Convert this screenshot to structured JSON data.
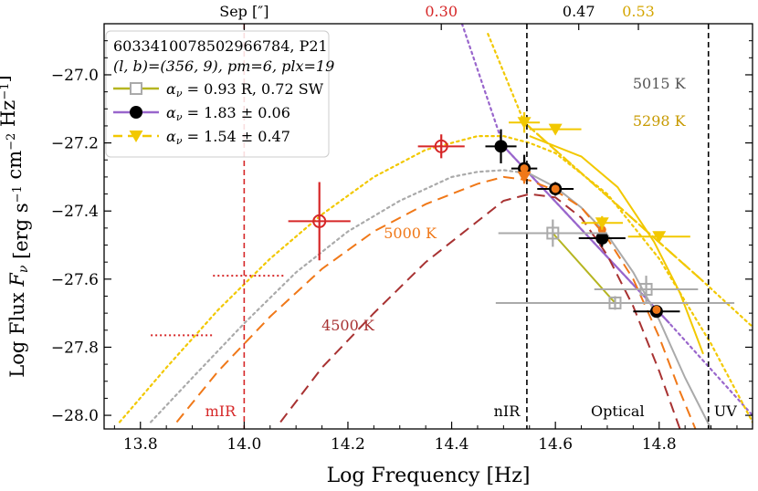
{
  "chart_data": {
    "type": "scatter",
    "title": "",
    "xlabel": "Log Frequency [Hz]",
    "ylabel": "Log Flux F_ν [erg s⁻¹ cm⁻² Hz⁻¹]",
    "ylabel_parts": {
      "pre": "Log Flux ",
      "F": "F",
      "nu": "ν",
      "post": " [erg s",
      "sup1": "−1",
      "mid": " cm",
      "sup2": "−2",
      "end": " Hz",
      "sup3": "−1",
      "close": "]"
    },
    "xlim": [
      13.73,
      14.98
    ],
    "ylim": [
      -28.04,
      -26.85
    ],
    "xticks": [
      13.8,
      14.0,
      14.2,
      14.4,
      14.6,
      14.8
    ],
    "xtick_labels": [
      "13.8",
      "14.0",
      "14.2",
      "14.4",
      "14.6",
      "14.8"
    ],
    "yticks": [
      -28.0,
      -27.8,
      -27.6,
      -27.4,
      -27.2,
      -27.0
    ],
    "ytick_labels": [
      "−28.0",
      "−27.8",
      "−27.6",
      "−27.4",
      "−27.2",
      "−27.0"
    ],
    "top_axis": {
      "label": "Sep [″]",
      "ticks": [
        {
          "x": 14.38,
          "label": "0.30",
          "color": "#d62728"
        },
        {
          "x": 14.645,
          "label": "0.47",
          "color": "#000000"
        },
        {
          "x": 14.76,
          "label": "0.53",
          "color": "#d4a500"
        }
      ]
    },
    "vlines": [
      {
        "x": 14.0,
        "label": "mIR",
        "color": "#d62728",
        "style": "dashed"
      },
      {
        "x": 14.545,
        "label": "nIR",
        "color": "#000000",
        "style": "dashed"
      },
      {
        "x": 14.895,
        "label": "UV",
        "color": "#000000",
        "style": "dashed"
      }
    ],
    "band_labels": [
      {
        "x": 14.545,
        "label": "nIR"
      },
      {
        "x": 14.72,
        "label": "Optical"
      },
      {
        "x": 14.895,
        "label": "UV"
      }
    ],
    "legend": {
      "position": "top-left",
      "header1": "6033410078502966784, P21",
      "header2": "(l, b)=(356, 9), pm=6, plx=19",
      "entries": [
        {
          "alpha": "0.93",
          "extra": "R, 0.72 SW",
          "color": "#b5b520",
          "marker": "square-open",
          "markerColor": "#aaaaaa",
          "dash": "solid"
        },
        {
          "alpha": "1.83 ± 0.06",
          "extra": "",
          "color": "#9966cc",
          "marker": "circle",
          "markerColor": "#000000",
          "dash": "solid"
        },
        {
          "alpha": "1.54 ± 0.47",
          "extra": "",
          "color": "#f2c800",
          "marker": "triangle-down",
          "markerColor": "#f2c800",
          "dash": "dashed"
        }
      ]
    },
    "curve_labels": [
      {
        "text": "5015 K",
        "x": 14.8,
        "y": -27.04,
        "color": "#555555"
      },
      {
        "text": "5298 K",
        "x": 14.8,
        "y": -27.15,
        "color": "#c79a00"
      },
      {
        "text": "5000 K",
        "x": 14.32,
        "y": -27.48,
        "color": "#f07818"
      },
      {
        "text": "4500 K",
        "x": 14.2,
        "y": -27.75,
        "color": "#a83232"
      }
    ],
    "series": [
      {
        "name": "mIR (red open circles)",
        "color": "#d62728",
        "marker": "circle-open",
        "points": [
          {
            "x": 14.145,
            "y": -27.43,
            "xerr": 0.06,
            "yerr": 0.115
          },
          {
            "x": 14.38,
            "y": -27.21,
            "xerr": 0.045,
            "yerr": 0.035
          }
        ]
      },
      {
        "name": "mIR upper limits (dotted)",
        "color": "#d62728",
        "marker": "none",
        "points": [
          {
            "x": 14.01,
            "y": -27.59,
            "xerr": 0.07,
            "yerr": 0
          },
          {
            "x": 13.88,
            "y": -27.765,
            "xerr": 0.06,
            "yerr": 0
          }
        ]
      },
      {
        "name": "α = 1.83 (black circles)",
        "color": "#000000",
        "marker": "circle",
        "points": [
          {
            "x": 14.495,
            "y": -27.21,
            "xerr": 0.03,
            "yerr": 0.05
          },
          {
            "x": 14.54,
            "y": -27.275,
            "xerr": 0.025,
            "yerr": 0.04
          },
          {
            "x": 14.6,
            "y": -27.335,
            "xerr": 0.035,
            "yerr": 0.02
          },
          {
            "x": 14.69,
            "y": -27.48,
            "xerr": 0.045,
            "yerr": 0.025
          },
          {
            "x": 14.795,
            "y": -27.695,
            "xerr": 0.045,
            "yerr": 0.015
          }
        ]
      },
      {
        "name": "orange markers on black",
        "color": "#f07818",
        "marker": "circle-small",
        "points": [
          {
            "x": 14.54,
            "y": -27.275,
            "xerr": 0,
            "yerr": 0
          },
          {
            "x": 14.6,
            "y": -27.335,
            "xerr": 0,
            "yerr": 0
          },
          {
            "x": 14.69,
            "y": -27.455,
            "xerr": 0,
            "yerr": 0
          },
          {
            "x": 14.795,
            "y": -27.69,
            "xerr": 0,
            "yerr": 0
          }
        ]
      },
      {
        "name": "orange down triangles",
        "color": "#f07818",
        "marker": "triangle-down",
        "points": [
          {
            "x": 14.54,
            "y": -27.3,
            "xerr": 0,
            "yerr": 0.02
          }
        ]
      },
      {
        "name": "α = 1.54 (yellow triangles)",
        "color": "#f2c800",
        "marker": "triangle-down",
        "points": [
          {
            "x": 14.54,
            "y": -27.14,
            "xerr": 0.03,
            "yerr": 0.03
          },
          {
            "x": 14.6,
            "y": -27.16,
            "xerr": 0.05,
            "yerr": 0
          },
          {
            "x": 14.69,
            "y": -27.435,
            "xerr": 0.04,
            "yerr": 0.02
          },
          {
            "x": 14.8,
            "y": -27.475,
            "xerr": 0.06,
            "yerr": 0
          }
        ]
      },
      {
        "name": "α = 0.93 (gray squares)",
        "color": "#aaaaaa",
        "marker": "square-open",
        "points": [
          {
            "x": 14.595,
            "y": -27.465,
            "xerr": 0.105,
            "yerr": 0.04
          },
          {
            "x": 14.715,
            "y": -27.67,
            "xerr": 0.23,
            "yerr": 0.02
          },
          {
            "x": 14.775,
            "y": -27.63,
            "xerr": 0.1,
            "yerr": 0.04
          }
        ]
      }
    ],
    "lines": [
      {
        "name": "α 0.93 fit",
        "color": "#b5b520",
        "dash": "solid",
        "width": 2,
        "x": [
          14.595,
          14.715
        ],
        "y": [
          -27.465,
          -27.67
        ]
      },
      {
        "name": "α 1.83 fit",
        "color": "#9966cc",
        "dash": "solid",
        "width": 2.2,
        "x": [
          14.5,
          14.82
        ],
        "y": [
          -27.21,
          -27.73
        ]
      },
      {
        "name": "α 1.83 extension",
        "color": "#9966cc",
        "dash": "dotted",
        "width": 2.2,
        "x": [
          14.42,
          14.5,
          14.82,
          14.98
        ],
        "y": [
          -26.85,
          -27.21,
          -27.73,
          -28.0
        ]
      },
      {
        "name": "α 1.54 fit",
        "color": "#f2c800",
        "dash": "dashed",
        "width": 2.2,
        "x": [
          14.54,
          14.88
        ],
        "y": [
          -27.14,
          -27.6
        ]
      },
      {
        "name": "α 1.54 extension",
        "color": "#f2c800",
        "dash": "dotted",
        "width": 2.2,
        "x": [
          14.47,
          14.54,
          14.88,
          14.98
        ],
        "y": [
          -26.88,
          -27.14,
          -27.6,
          -27.74
        ]
      },
      {
        "name": "yellow solid curve",
        "color": "#f2c800",
        "dash": "solid",
        "width": 2,
        "x": [
          14.55,
          14.65,
          14.72,
          14.79,
          14.84,
          14.87,
          14.885
        ],
        "y": [
          -27.18,
          -27.24,
          -27.33,
          -27.49,
          -27.64,
          -27.76,
          -27.82
        ]
      },
      {
        "name": "5298 K blackbody",
        "color": "#f2c800",
        "dash": "dotted",
        "width": 2.2,
        "x": [
          13.76,
          13.85,
          13.95,
          14.05,
          14.15,
          14.25,
          14.35,
          14.45,
          14.5,
          14.55,
          14.6,
          14.7,
          14.8,
          14.9,
          14.98
        ],
        "y": [
          -28.02,
          -27.86,
          -27.69,
          -27.54,
          -27.41,
          -27.3,
          -27.22,
          -27.18,
          -27.18,
          -27.2,
          -27.23,
          -27.35,
          -27.54,
          -27.79,
          -28.02
        ]
      },
      {
        "name": "5015 K blackbody",
        "color": "#aaaaaa",
        "dash": "dotted",
        "width": 2.2,
        "x": [
          13.82,
          13.9,
          14.0,
          14.1,
          14.2,
          14.3,
          14.4,
          14.45,
          14.5,
          14.55
        ],
        "y": [
          -28.02,
          -27.89,
          -27.73,
          -27.58,
          -27.46,
          -27.37,
          -27.3,
          -27.285,
          -27.28,
          -27.29
        ]
      },
      {
        "name": "5015 K blackbody (solid)",
        "color": "#aaaaaa",
        "dash": "solid",
        "width": 2,
        "x": [
          14.55,
          14.6,
          14.65,
          14.7,
          14.75,
          14.8,
          14.85,
          14.9
        ],
        "y": [
          -27.29,
          -27.33,
          -27.39,
          -27.47,
          -27.58,
          -27.72,
          -27.89,
          -28.04
        ]
      },
      {
        "name": "5000 K blackbody",
        "color": "#f07818",
        "dash": "dashed",
        "width": 2,
        "x": [
          13.87,
          13.95,
          14.05,
          14.15,
          14.25,
          14.35,
          14.45,
          14.5,
          14.55,
          14.6,
          14.65,
          14.7,
          14.75,
          14.8,
          14.84,
          14.87
        ],
        "y": [
          -28.02,
          -27.87,
          -27.71,
          -27.57,
          -27.46,
          -27.38,
          -27.32,
          -27.3,
          -27.31,
          -27.34,
          -27.39,
          -27.48,
          -27.6,
          -27.77,
          -27.93,
          -28.04
        ]
      },
      {
        "name": "4500 K blackbody",
        "color": "#a83232",
        "dash": "dashed",
        "width": 2,
        "x": [
          14.07,
          14.15,
          14.25,
          14.35,
          14.45,
          14.5,
          14.55,
          14.6,
          14.65,
          14.7,
          14.75,
          14.8,
          14.84
        ],
        "y": [
          -28.02,
          -27.86,
          -27.7,
          -27.55,
          -27.43,
          -27.37,
          -27.35,
          -27.36,
          -27.42,
          -27.53,
          -27.68,
          -27.87,
          -28.04
        ]
      }
    ]
  }
}
